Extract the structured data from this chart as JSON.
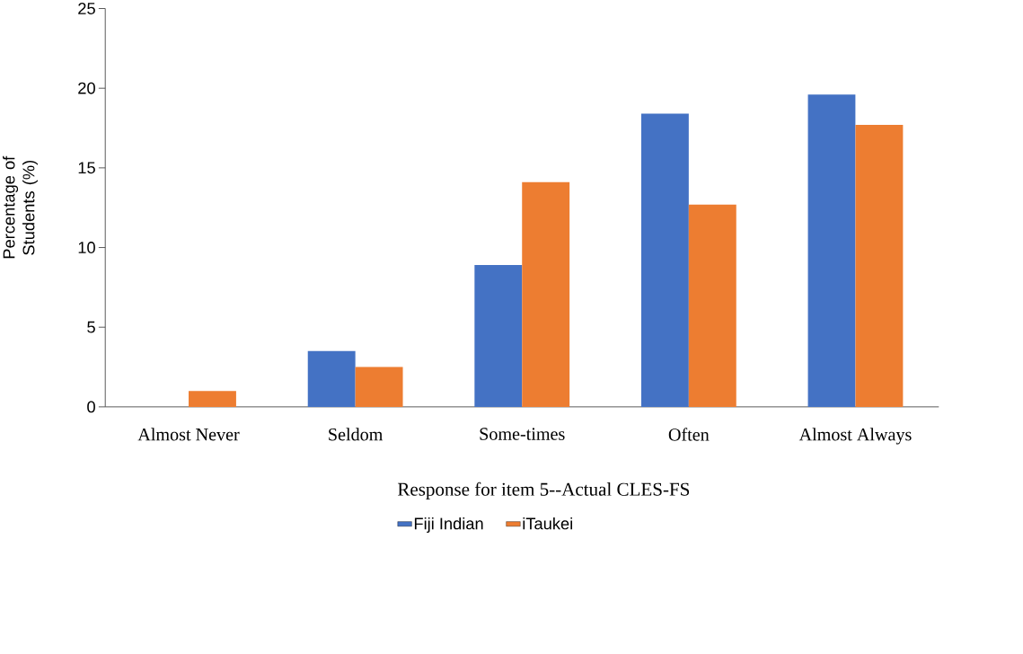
{
  "chart_data": {
    "type": "bar",
    "xlabel": "Response  for item 5--Actual  CLES-FS",
    "ylabel": "Percentage of Students (%)",
    "categories": [
      "Almost Never",
      "Seldom",
      "Some-times",
      "Often",
      "Almost Always"
    ],
    "series": [
      {
        "name": "Fiji Indian",
        "color": "#4472c4",
        "values": [
          0,
          3.5,
          8.9,
          18.4,
          19.6
        ]
      },
      {
        "name": "iTaukei",
        "color": "#ed7d31",
        "values": [
          1.0,
          2.5,
          14.1,
          12.7,
          17.7
        ]
      }
    ],
    "ylim": [
      0,
      25
    ],
    "yticks": [
      0,
      5,
      10,
      15,
      20,
      25
    ],
    "grid": false,
    "legend": "bottom"
  }
}
